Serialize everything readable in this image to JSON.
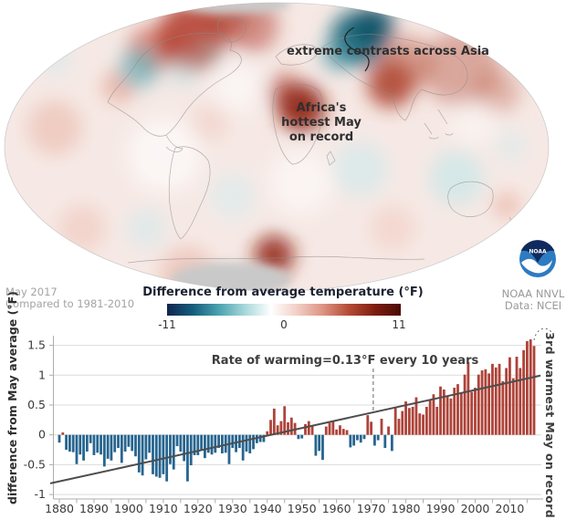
{
  "map": {
    "annotation_asia": "extreme contrasts across Asia",
    "annotation_africa_lines": [
      "Africa's",
      "hottest May",
      "on record"
    ],
    "period_line1": "May 2017",
    "period_line2": "Compared to 1981-2010",
    "credit_line1": "NOAA NNVL",
    "credit_line2": "Data: NCEI",
    "logo_text": "NOAA"
  },
  "legend": {
    "title": "Difference from average temperature (°F)",
    "min_label": "-11",
    "mid_label": "0",
    "max_label": "11",
    "gradient": [
      "#10254f",
      "#155e7d",
      "#4aa3b0",
      "#a8d8da",
      "#ffffff",
      "#f2cfc6",
      "#dd9383",
      "#b44b36",
      "#7e1d10",
      "#4a0b03"
    ]
  },
  "chart_data": {
    "type": "bar",
    "title": "",
    "xlabel": "",
    "ylabel": "difference from May average (°F)",
    "year_start": 1880,
    "year_end": 2017,
    "x_tick_labels": [
      "1880",
      "1890",
      "1900",
      "1910",
      "1920",
      "1930",
      "1940",
      "1950",
      "1960",
      "1970",
      "1980",
      "1990",
      "2000",
      "2010"
    ],
    "y_ticks": [
      1.5,
      1,
      0.5,
      0,
      -0.5,
      -1
    ],
    "y_tick_labels": [
      "1.5",
      "1",
      "0.5",
      "0",
      "-0.5",
      "-1"
    ],
    "ylim": [
      -1.05,
      1.65
    ],
    "grid": true,
    "values": [
      -0.13,
      0.04,
      -0.25,
      -0.28,
      -0.29,
      -0.49,
      -0.33,
      -0.43,
      -0.28,
      -0.14,
      -0.34,
      -0.3,
      -0.33,
      -0.53,
      -0.4,
      -0.43,
      -0.29,
      -0.22,
      -0.47,
      -0.28,
      -0.2,
      -0.27,
      -0.36,
      -0.63,
      -0.68,
      -0.41,
      -0.3,
      -0.66,
      -0.7,
      -0.72,
      -0.66,
      -0.78,
      -0.49,
      -0.58,
      -0.19,
      -0.28,
      -0.44,
      -0.78,
      -0.51,
      -0.34,
      -0.34,
      -0.26,
      -0.39,
      -0.3,
      -0.33,
      -0.3,
      -0.22,
      -0.31,
      -0.3,
      -0.49,
      -0.22,
      -0.29,
      -0.22,
      -0.43,
      -0.28,
      -0.31,
      -0.24,
      -0.14,
      -0.12,
      -0.12,
      0.06,
      0.25,
      0.44,
      0.16,
      0.23,
      0.48,
      0.21,
      0.29,
      0.2,
      -0.07,
      -0.06,
      0.18,
      0.23,
      0.16,
      -0.35,
      -0.27,
      -0.42,
      0.14,
      0.2,
      0.22,
      0.09,
      0.16,
      0.1,
      0.08,
      -0.21,
      -0.18,
      -0.09,
      -0.13,
      -0.07,
      0.33,
      0.22,
      -0.18,
      -0.09,
      0.27,
      -0.22,
      0.14,
      -0.27,
      0.45,
      0.27,
      0.4,
      0.56,
      0.45,
      0.47,
      0.63,
      0.36,
      0.34,
      0.47,
      0.59,
      0.68,
      0.47,
      0.81,
      0.76,
      0.65,
      0.61,
      0.79,
      0.85,
      0.7,
      1.01,
      1.22,
      0.72,
      0.79,
      1.01,
      1.08,
      1.1,
      1.03,
      1.19,
      1.13,
      1.19,
      0.9,
      1.12,
      1.3,
      0.95,
      1.31,
      1.12,
      1.42,
      1.57,
      1.6,
      1.49
    ],
    "positive_color": "#ae4339",
    "negative_color": "#27658f",
    "trend": {
      "label": "Rate of warming=0.13°F every 10 years",
      "start": {
        "year": 1880,
        "value": -0.78
      },
      "end": {
        "year": 2017,
        "value": 0.97
      },
      "color": "#4d4d4d"
    },
    "annotation_right": "3rd warmest May on record",
    "legend_position": "none"
  }
}
